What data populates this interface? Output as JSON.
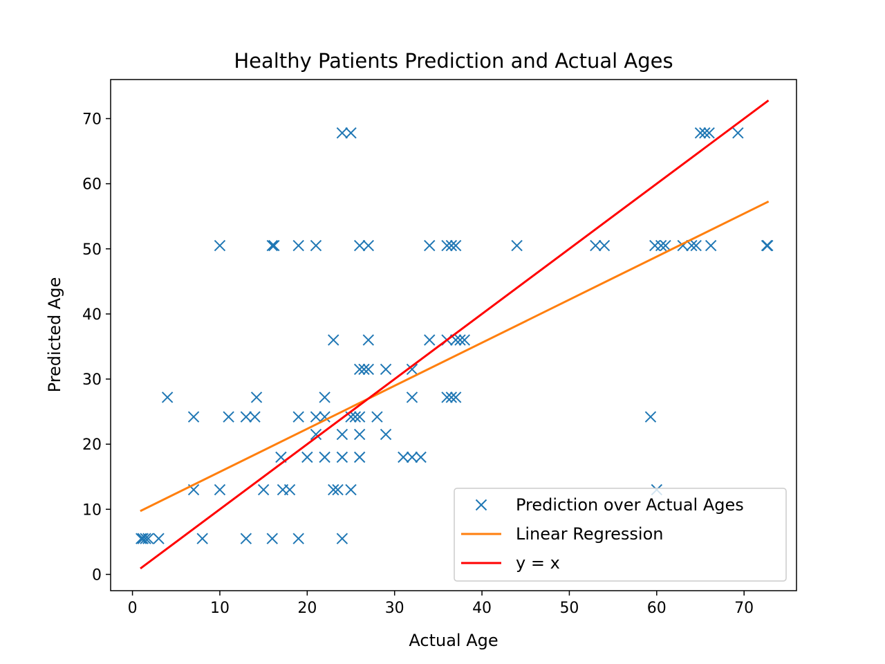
{
  "chart_data": {
    "type": "scatter",
    "title": "Healthy Patients Prediction and Actual Ages",
    "xlabel": "Actual Age",
    "ylabel": "Predicted Age",
    "xlim": [
      -2.5,
      76
    ],
    "ylim": [
      -2.5,
      76
    ],
    "xticks": [
      0,
      10,
      20,
      30,
      40,
      50,
      60,
      70
    ],
    "yticks": [
      0,
      10,
      20,
      30,
      40,
      50,
      60,
      70
    ],
    "grid": false,
    "legend_position": "lower-right",
    "colors": {
      "scatter": "#1f77b4",
      "regression": "#ff7f0e",
      "identity": "#ff0000"
    },
    "series": [
      {
        "name": "Prediction over Actual Ages",
        "kind": "scatter",
        "marker": "x",
        "points": [
          [
            1,
            5.5
          ],
          [
            1.2,
            5.5
          ],
          [
            1.5,
            5.5
          ],
          [
            1.8,
            5.5
          ],
          [
            3,
            5.5
          ],
          [
            8,
            5.5
          ],
          [
            13,
            5.5
          ],
          [
            16,
            5.5
          ],
          [
            19,
            5.5
          ],
          [
            24,
            5.5
          ],
          [
            4,
            27.2
          ],
          [
            7,
            24.2
          ],
          [
            7,
            13
          ],
          [
            10,
            13
          ],
          [
            10,
            50.5
          ],
          [
            11,
            24.2
          ],
          [
            13,
            24.2
          ],
          [
            14,
            24.2
          ],
          [
            14.2,
            27.2
          ],
          [
            15,
            13
          ],
          [
            16,
            50.5
          ],
          [
            16.2,
            50.5
          ],
          [
            17,
            18
          ],
          [
            17.2,
            13
          ],
          [
            18,
            13
          ],
          [
            19,
            24.2
          ],
          [
            19,
            50.5
          ],
          [
            20,
            18
          ],
          [
            21,
            21.5
          ],
          [
            21,
            24.2
          ],
          [
            21,
            50.5
          ],
          [
            22,
            24.2
          ],
          [
            22,
            27.2
          ],
          [
            22,
            18
          ],
          [
            23,
            13
          ],
          [
            23,
            36
          ],
          [
            23.5,
            13
          ],
          [
            24,
            18
          ],
          [
            24,
            21.5
          ],
          [
            24,
            67.8
          ],
          [
            25,
            67.8
          ],
          [
            25,
            13
          ],
          [
            25,
            24.2
          ],
          [
            25.5,
            24.2
          ],
          [
            26,
            24.2
          ],
          [
            26,
            18
          ],
          [
            26,
            21.5
          ],
          [
            26,
            31.5
          ],
          [
            26,
            50.5
          ],
          [
            26.5,
            31.5
          ],
          [
            27,
            31.5
          ],
          [
            27,
            36
          ],
          [
            27,
            50.5
          ],
          [
            28,
            24.2
          ],
          [
            29,
            21.5
          ],
          [
            29,
            31.5
          ],
          [
            31,
            18
          ],
          [
            32,
            18
          ],
          [
            32,
            27.2
          ],
          [
            32,
            31.5
          ],
          [
            33,
            18
          ],
          [
            34,
            36
          ],
          [
            34,
            50.5
          ],
          [
            36,
            36
          ],
          [
            36,
            50.5
          ],
          [
            36,
            27.2
          ],
          [
            36.5,
            27.2
          ],
          [
            36.5,
            50.5
          ],
          [
            37,
            27.2
          ],
          [
            37,
            36
          ],
          [
            37,
            50.5
          ],
          [
            37.5,
            36
          ],
          [
            38,
            36
          ],
          [
            44,
            50.5
          ],
          [
            53,
            50.5
          ],
          [
            54,
            50.5
          ],
          [
            59.3,
            24.2
          ],
          [
            59.8,
            50.5
          ],
          [
            60,
            13
          ],
          [
            60.5,
            50.5
          ],
          [
            61,
            50.5
          ],
          [
            63,
            50.5
          ],
          [
            64,
            50.5
          ],
          [
            64.5,
            50.5
          ],
          [
            65,
            67.8
          ],
          [
            65.5,
            67.8
          ],
          [
            66,
            67.8
          ],
          [
            66.2,
            50.5
          ],
          [
            69.3,
            67.8
          ],
          [
            72.6,
            50.5
          ],
          [
            72.7,
            50.5
          ]
        ]
      },
      {
        "name": "Linear Regression",
        "kind": "line",
        "points": [
          [
            1,
            9.8
          ],
          [
            72.7,
            57.2
          ]
        ]
      },
      {
        "name": "y = x",
        "kind": "line",
        "points": [
          [
            1,
            1
          ],
          [
            72.7,
            72.7
          ]
        ]
      }
    ]
  }
}
